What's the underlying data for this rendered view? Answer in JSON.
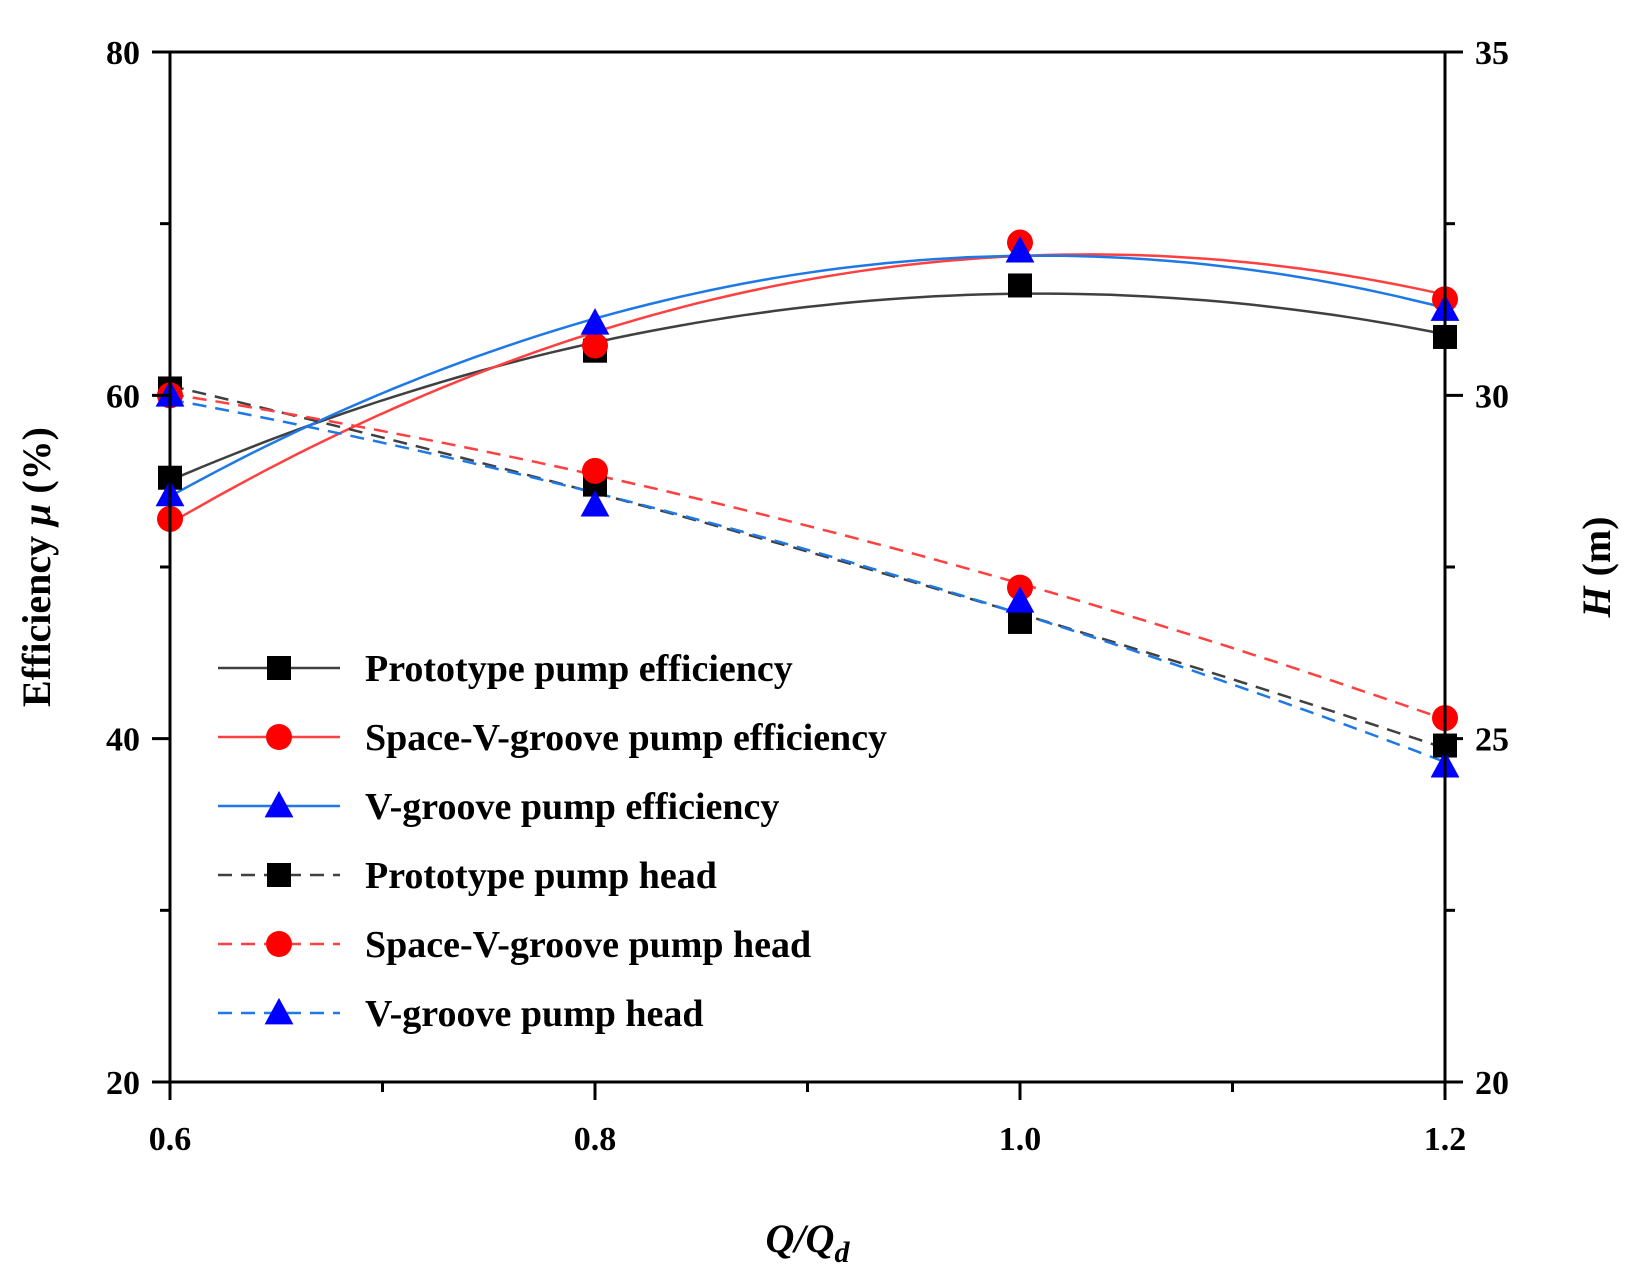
{
  "chart_data": {
    "type": "line",
    "title": "",
    "x": [
      0.6,
      0.8,
      1.0,
      1.2
    ],
    "xlabel": {
      "main": "Q/Q",
      "sub": "d"
    },
    "ylabel_left": {
      "pre": "Efficiency ",
      "sym": "μ",
      "post": " (%)"
    },
    "ylabel_right": {
      "sym": "H",
      "post": " (m)"
    },
    "xlim": [
      0.6,
      1.2
    ],
    "ylim_left": [
      20,
      80
    ],
    "ylim_right": [
      20,
      35
    ],
    "x_major_ticks": [
      0.6,
      0.8,
      1.0,
      1.2
    ],
    "x_tick_labels": [
      "0.6",
      "0.8",
      "1.0",
      "1.2"
    ],
    "x_minor_ticks": [
      0.7,
      0.9,
      1.1
    ],
    "y_left_major_ticks": [
      20,
      40,
      60,
      80
    ],
    "y_left_tick_labels": [
      "20",
      "40",
      "60",
      "80"
    ],
    "y_left_minor_ticks": [
      30,
      50,
      70
    ],
    "y_right_major_ticks": [
      20,
      25,
      30,
      35
    ],
    "y_right_tick_labels": [
      "20",
      "25",
      "30",
      "35"
    ],
    "y_right_minor_ticks": [
      22.5,
      27.5,
      32.5
    ],
    "grid": false,
    "legend_position": "center-left",
    "series": [
      {
        "name": "Prototype pump efficiency",
        "axis": "left",
        "line": "solid",
        "marker": "square",
        "color": "#404040",
        "marker_color": "#000000",
        "values": [
          55.2,
          62.6,
          66.4,
          63.4
        ]
      },
      {
        "name": "Space-V-groove pump efficiency",
        "axis": "left",
        "line": "solid",
        "marker": "circle",
        "color": "#ff4040",
        "marker_color": "#ff0000",
        "values": [
          52.8,
          62.9,
          68.9,
          65.6
        ]
      },
      {
        "name": "V-groove pump efficiency",
        "axis": "left",
        "line": "solid",
        "marker": "triangle",
        "color": "#1e78e6",
        "marker_color": "#0000ff",
        "values": [
          54.2,
          64.2,
          68.4,
          65.0
        ]
      },
      {
        "name": "Prototype pump head",
        "axis": "right",
        "line": "dashed",
        "marker": "square",
        "color": "#404040",
        "marker_color": "#000000",
        "values": [
          30.1,
          28.7,
          26.7,
          24.9
        ]
      },
      {
        "name": "Space-V-groove pump head",
        "axis": "right",
        "line": "dashed",
        "marker": "circle",
        "color": "#ff4040",
        "marker_color": "#ff0000",
        "values": [
          30.0,
          28.9,
          27.2,
          25.3
        ]
      },
      {
        "name": "V-groove pump head",
        "axis": "right",
        "line": "dashed",
        "marker": "triangle",
        "color": "#1e78e6",
        "marker_color": "#0000ff",
        "values": [
          30.0,
          28.4,
          27.0,
          24.6
        ]
      }
    ]
  }
}
